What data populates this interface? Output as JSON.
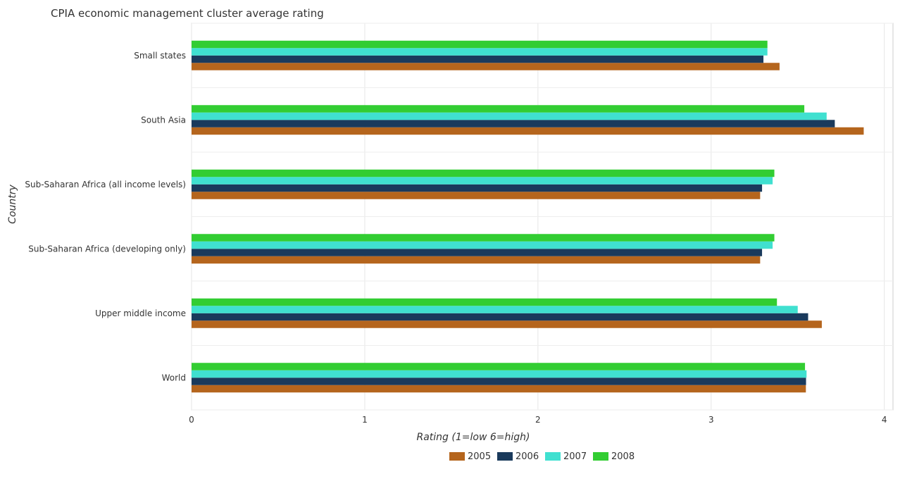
{
  "chart_data": {
    "type": "bar",
    "orientation": "horizontal",
    "title": "CPIA economic management cluster average rating",
    "xlabel": "Rating (1=low 6=high)",
    "ylabel": "Country",
    "xlim": [
      0,
      4.05
    ],
    "xticks": [
      0,
      1,
      2,
      3,
      4
    ],
    "grid": true,
    "legend_position": "bottom",
    "categories": [
      "Small states",
      "South Asia",
      "Sub-Saharan Africa (all income levels)",
      "Sub-Saharan Africa (developing only)",
      "Upper middle income",
      "World"
    ],
    "series": [
      {
        "name": "2005",
        "color": "#b5651d",
        "values": [
          3.395,
          3.881,
          3.283,
          3.283,
          3.639,
          3.547
        ]
      },
      {
        "name": "2006",
        "color": "#1a3a5c",
        "values": [
          3.302,
          3.714,
          3.294,
          3.294,
          3.56,
          3.548
        ]
      },
      {
        "name": "2007",
        "color": "#40e0d0",
        "values": [
          3.325,
          3.667,
          3.355,
          3.355,
          3.5,
          3.551
        ]
      },
      {
        "name": "2008",
        "color": "#32cd32",
        "values": [
          3.325,
          3.538,
          3.365,
          3.365,
          3.38,
          3.542
        ]
      }
    ]
  }
}
